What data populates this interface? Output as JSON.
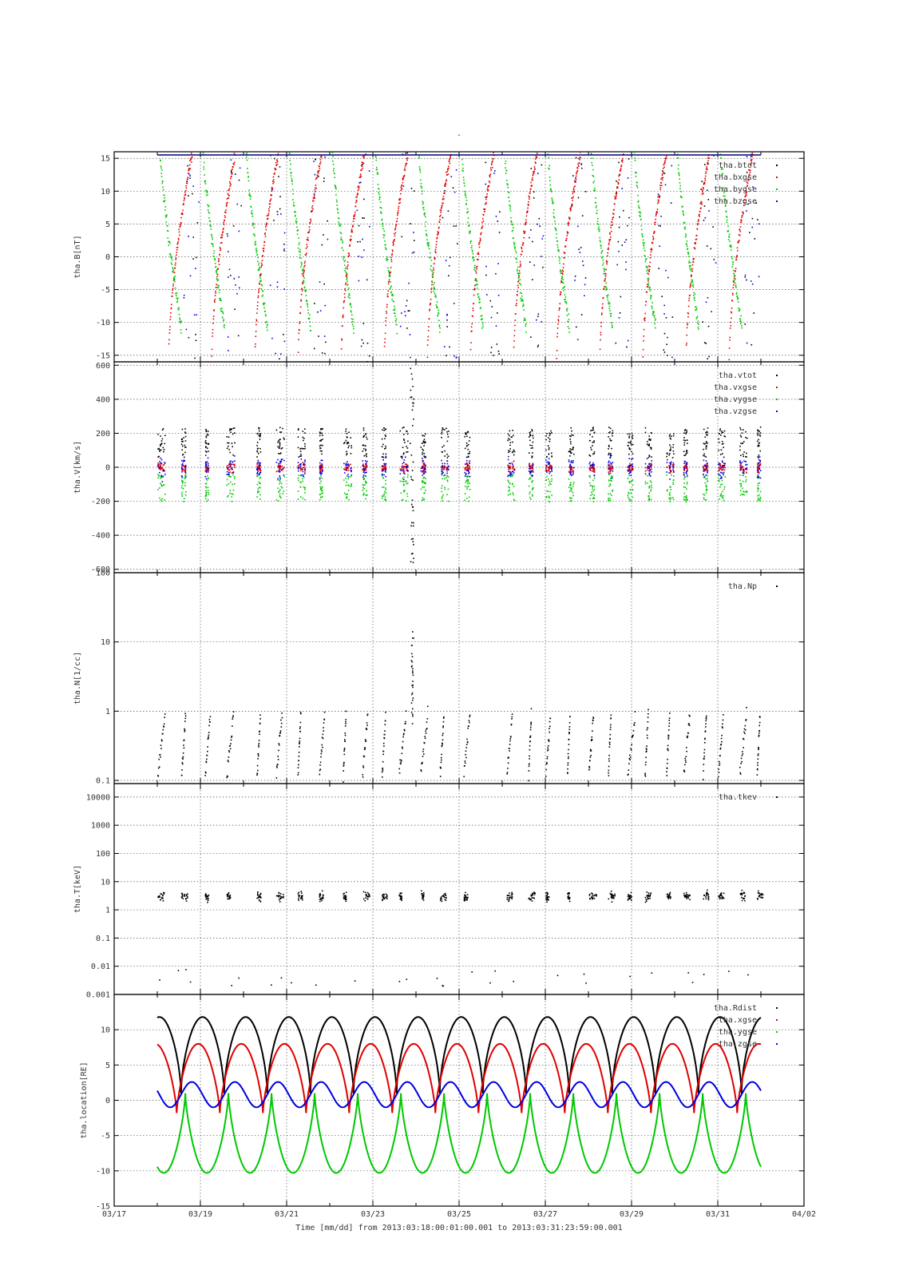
{
  "figure": {
    "title": "-",
    "xaxis": {
      "ticks": [
        "03/17",
        "03/19",
        "03/21",
        "03/23",
        "03/25",
        "03/27",
        "03/29",
        "03/31",
        "04/02"
      ],
      "tick_days": [
        17,
        19,
        21,
        23,
        25,
        27,
        29,
        31,
        33
      ],
      "label": "Time [mm/dd]  from 2013:03:18:00:01:00.001  to  2013:03:31:23:59:00.001",
      "range_days": [
        17,
        33
      ]
    },
    "colors": {
      "black": "#000000",
      "red": "#e00000",
      "green": "#00c800",
      "blue": "#0000e0"
    }
  },
  "chart_data": [
    {
      "type": "scatter",
      "id": "B",
      "ylabel": "tha.B[nT]",
      "ylim": [
        -16,
        16
      ],
      "yscale": "linear",
      "yticks": [
        -15,
        -10,
        -5,
        0,
        5,
        10,
        15
      ],
      "grid": true,
      "legend_position": "top-right",
      "series": [
        {
          "name": "tha.btot",
          "color": "#000000"
        },
        {
          "name": "tha.bxgse",
          "color": "#e00000"
        },
        {
          "name": "tha.bygse",
          "color": "#00c800"
        },
        {
          "name": "tha.bzgse",
          "color": "#0000e0"
        }
      ]
    },
    {
      "type": "scatter",
      "id": "V",
      "ylabel": "tha.V[km/s]",
      "ylim": [
        -620,
        620
      ],
      "yscale": "linear",
      "yticks": [
        -600,
        -400,
        -200,
        0,
        200,
        400,
        600
      ],
      "grid": true,
      "legend_position": "top-right",
      "series": [
        {
          "name": "tha.vtot",
          "color": "#000000"
        },
        {
          "name": "tha.vxgse",
          "color": "#e00000"
        },
        {
          "name": "tha.vygse",
          "color": "#00c800"
        },
        {
          "name": "tha.vzgse",
          "color": "#0000e0"
        }
      ]
    },
    {
      "type": "scatter",
      "id": "N",
      "ylabel": "tha.N[1/cc]",
      "ylim": [
        0.09,
        100
      ],
      "yscale": "log",
      "yticks": [
        0.1,
        1,
        10,
        100
      ],
      "ytick_labels": [
        "0.1",
        "1",
        "10",
        "100"
      ],
      "grid": true,
      "legend_position": "top-right",
      "series": [
        {
          "name": "tha.Np",
          "color": "#000000"
        }
      ]
    },
    {
      "type": "scatter",
      "id": "T",
      "ylabel": "tha.T[keV]",
      "ylim": [
        0.001,
        30000
      ],
      "yscale": "log",
      "yticks": [
        0.001,
        0.01,
        0.1,
        1,
        10,
        100,
        1000,
        10000
      ],
      "ytick_labels": [
        "0.001",
        "0.01",
        "0.1",
        "1",
        "10",
        "100",
        "1000",
        "10000"
      ],
      "grid": true,
      "legend_position": "top-right",
      "series": [
        {
          "name": "tha.tkev",
          "color": "#000000"
        }
      ]
    },
    {
      "type": "line",
      "id": "location",
      "ylabel": "tha.location[RE]",
      "ylim": [
        -15,
        15
      ],
      "yscale": "linear",
      "yticks": [
        -15,
        -10,
        -5,
        0,
        5,
        10
      ],
      "grid": true,
      "legend_position": "top-right",
      "orbit_period_days": 1.0,
      "series": [
        {
          "name": "tha.Rdist",
          "color": "#000000",
          "min": 1.0,
          "max": 11.8
        },
        {
          "name": "tha.xgse",
          "color": "#e00000",
          "min": -1.8,
          "max": 8.0
        },
        {
          "name": "tha.ygse",
          "color": "#00c800",
          "min": -10.3,
          "max": 1.0
        },
        {
          "name": "tha.zgse",
          "color": "#0000e0",
          "min": -1.0,
          "max": 2.6
        }
      ]
    }
  ]
}
